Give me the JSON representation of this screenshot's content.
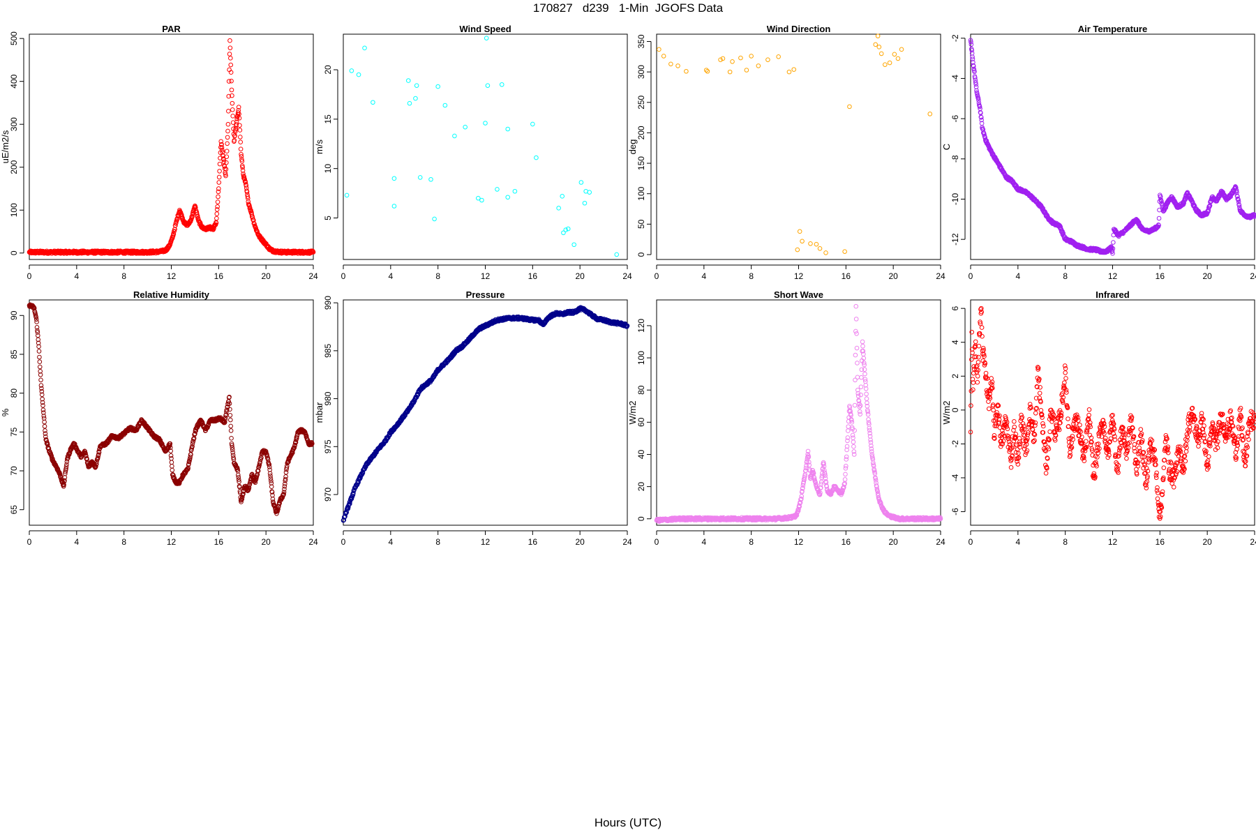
{
  "page": {
    "title": "170827   d239   1-Min  JGOFS Data",
    "x_label": "Hours (UTC)"
  },
  "chart_data": [
    {
      "type": "scatter",
      "title": "PAR",
      "ylabel": "uE/m2/s",
      "color": "#ff0000",
      "xlim": [
        0,
        24
      ],
      "xticks": [
        0,
        4,
        8,
        12,
        16,
        20,
        24
      ],
      "ylim": [
        -15,
        510
      ],
      "yticks": [
        0,
        100,
        200,
        300,
        400,
        500
      ],
      "x": [
        0,
        1,
        2,
        3,
        4,
        5,
        6,
        7,
        8,
        9,
        10,
        11,
        11.5,
        11.8,
        12.1,
        12.4,
        12.7,
        12.9,
        13.1,
        13.4,
        13.7,
        14,
        14.3,
        14.6,
        14.9,
        15.2,
        15.5,
        15.8,
        16,
        16.2,
        16.4,
        16.6,
        16.8,
        16.95,
        17.1,
        17.3,
        17.5,
        17.7,
        17.9,
        18.1,
        18.3,
        18.5,
        18.8,
        19.1,
        19.4,
        19.7,
        20,
        20.3,
        20.6,
        21,
        21.5,
        22,
        22.5,
        23,
        23.5,
        24
      ],
      "y": [
        2,
        2,
        2,
        2,
        2,
        2,
        2,
        2,
        2,
        2,
        2,
        3,
        6,
        15,
        35,
        70,
        100,
        85,
        70,
        65,
        80,
        110,
        75,
        60,
        55,
        60,
        55,
        70,
        150,
        260,
        220,
        180,
        300,
        495,
        380,
        260,
        300,
        340,
        230,
        180,
        160,
        120,
        90,
        60,
        40,
        30,
        20,
        10,
        5,
        3,
        2,
        2,
        2,
        2,
        2,
        2
      ]
    },
    {
      "type": "scatter",
      "title": "Wind Speed",
      "ylabel": "m/s",
      "color": "#00ffff",
      "xlim": [
        0,
        24
      ],
      "xticks": [
        0,
        4,
        8,
        12,
        16,
        20,
        24
      ],
      "ylim": [
        0.8,
        23.6
      ],
      "yticks": [
        5,
        10,
        15,
        20
      ],
      "x": [
        0.3,
        0.7,
        1.3,
        1.8,
        2.5,
        4.3,
        4.3,
        5.5,
        5.6,
        6.1,
        6.2,
        6.5,
        7.4,
        7.7,
        8,
        8.6,
        9.4,
        10.3,
        11.4,
        11.7,
        12,
        12.2,
        12.1,
        13,
        13.4,
        13.9,
        13.9,
        14.5,
        16,
        16.3,
        18.2,
        18.5,
        18.6,
        18.8,
        19,
        19.5,
        20.1,
        20.4,
        20.5,
        20.8,
        23.1
      ],
      "y": [
        7.3,
        19.9,
        19.5,
        22.2,
        16.7,
        9,
        6.2,
        18.9,
        16.6,
        17.1,
        18.4,
        9.1,
        8.9,
        4.9,
        18.3,
        16.4,
        13.3,
        14.2,
        7,
        6.8,
        14.6,
        18.4,
        23.2,
        7.9,
        18.5,
        14,
        7.1,
        7.7,
        14.5,
        11.1,
        6,
        7.2,
        3.5,
        3.8,
        3.9,
        2.3,
        8.6,
        6.5,
        7.7,
        7.6,
        1.3
      ]
    },
    {
      "type": "scatter",
      "title": "Wind Direction",
      "ylabel": "deg",
      "color": "#ffa500",
      "xlim": [
        0,
        24
      ],
      "xticks": [
        0,
        4,
        8,
        12,
        16,
        20,
        24
      ],
      "ylim": [
        -8,
        362
      ],
      "yticks": [
        0,
        50,
        100,
        150,
        200,
        250,
        300,
        350
      ],
      "x": [
        0.2,
        0.6,
        1.2,
        1.8,
        2.5,
        4.2,
        4.3,
        5.4,
        5.6,
        6.2,
        6.4,
        7.1,
        7.6,
        8,
        8.6,
        9.4,
        10.3,
        11.2,
        11.6,
        11.9,
        12.1,
        12.3,
        13,
        13.5,
        13.8,
        14.3,
        15.9,
        16.3,
        18.5,
        18.7,
        18.8,
        19,
        19.3,
        19.7,
        20.1,
        20.4,
        20.7,
        23.1
      ],
      "y": [
        337,
        326,
        313,
        310,
        301,
        303,
        301,
        320,
        322,
        300,
        317,
        323,
        303,
        326,
        310,
        320,
        325,
        300,
        304,
        8,
        38,
        22,
        18,
        17,
        10,
        3,
        5,
        243,
        345,
        359,
        341,
        330,
        312,
        315,
        329,
        322,
        337,
        231
      ]
    },
    {
      "type": "scatter",
      "title": "Air Temperature",
      "ylabel": "C",
      "color": "#a020f0",
      "xlim": [
        0,
        24
      ],
      "xticks": [
        0,
        4,
        8,
        12,
        16,
        20,
        24
      ],
      "ylim": [
        -13,
        -1.8
      ],
      "yticks": [
        -2,
        -4,
        -6,
        -8,
        -10,
        -12
      ],
      "x": [
        0,
        0.1,
        0.2,
        0.3,
        0.5,
        0.8,
        1,
        1.3,
        1.7,
        2,
        2.5,
        3,
        3.5,
        4,
        4.5,
        5,
        5.5,
        6,
        6.5,
        7,
        7.5,
        8,
        8.5,
        9,
        9.5,
        10,
        10.5,
        11,
        11.5,
        11.9,
        12,
        12.1,
        12.5,
        13,
        13.5,
        14,
        14.5,
        15,
        15.5,
        15.9,
        16,
        16.3,
        16.7,
        17,
        17.5,
        18,
        18.3,
        18.7,
        19,
        19.5,
        20,
        20.4,
        20.8,
        21.2,
        21.6,
        22,
        22.4,
        22.8,
        23.2,
        23.6,
        24
      ],
      "y": [
        -2.1,
        -2.6,
        -3.2,
        -3.6,
        -4.6,
        -5.5,
        -6.5,
        -7.1,
        -7.6,
        -7.9,
        -8.4,
        -8.9,
        -9.1,
        -9.5,
        -9.6,
        -9.8,
        -10.1,
        -10.4,
        -10.9,
        -11.2,
        -11.3,
        -12,
        -12.1,
        -12.3,
        -12.4,
        -12.5,
        -12.5,
        -12.6,
        -12.6,
        -12.4,
        -12.7,
        -11.5,
        -11.8,
        -11.6,
        -11.3,
        -11,
        -11.5,
        -11.6,
        -11.5,
        -11.3,
        -9.8,
        -10.6,
        -10.1,
        -9.9,
        -10.4,
        -10.2,
        -9.7,
        -10.1,
        -10.5,
        -10.8,
        -10.7,
        -9.9,
        -10.1,
        -9.6,
        -10,
        -9.8,
        -9.4,
        -10.6,
        -10.8,
        -10.9,
        -10.8
      ]
    },
    {
      "type": "scatter",
      "title": "Relative Humidity",
      "ylabel": "%",
      "color": "#8b0000",
      "xlim": [
        0,
        24
      ],
      "xticks": [
        0,
        4,
        8,
        12,
        16,
        20,
        24
      ],
      "ylim": [
        63,
        92
      ],
      "yticks": [
        65,
        70,
        75,
        80,
        85,
        90
      ],
      "x": [
        0,
        0.2,
        0.4,
        0.6,
        0.8,
        1,
        1.2,
        1.4,
        1.7,
        2,
        2.3,
        2.6,
        2.9,
        3.2,
        3.5,
        3.8,
        4.1,
        4.4,
        4.7,
        5,
        5.3,
        5.6,
        6,
        6.5,
        7,
        7.5,
        8,
        8.5,
        9,
        9.5,
        10,
        10.5,
        11,
        11.5,
        11.9,
        12.1,
        12.4,
        12.7,
        13,
        13.4,
        13.8,
        14.1,
        14.5,
        14.9,
        15.3,
        15.7,
        16.1,
        16.5,
        16.9,
        17.1,
        17.3,
        17.6,
        17.9,
        18.2,
        18.5,
        18.8,
        19.1,
        19.4,
        19.7,
        20,
        20.3,
        20.6,
        20.9,
        21.2,
        21.5,
        21.8,
        22.1,
        22.4,
        22.7,
        23,
        23.3,
        23.6,
        23.9
      ],
      "y": [
        91.3,
        91.2,
        91,
        89.5,
        86,
        81,
        77.5,
        74,
        72.5,
        71.3,
        70.5,
        69.5,
        68,
        71.5,
        72.8,
        73.5,
        72.5,
        71.8,
        72.5,
        70.5,
        71.2,
        70.5,
        73.2,
        73.5,
        74.5,
        74.2,
        74.8,
        75.5,
        75.2,
        76.5,
        75.5,
        74.5,
        74,
        72.5,
        73.5,
        69.5,
        68.5,
        68.5,
        69.5,
        70.2,
        73.5,
        75.5,
        76.5,
        75.2,
        76.5,
        76.5,
        76.8,
        76.2,
        79.5,
        73.5,
        71,
        70.2,
        66,
        68,
        67.5,
        69.5,
        68.5,
        70.5,
        72.5,
        72.5,
        70.5,
        66,
        64.5,
        66.2,
        67,
        71,
        72,
        73,
        75,
        75.2,
        75,
        73.5,
        73.5
      ]
    },
    {
      "type": "scatter",
      "title": "Pressure",
      "ylabel": "mbar",
      "color": "#00008b",
      "xlim": [
        0,
        24
      ],
      "xticks": [
        0,
        4,
        8,
        12,
        16,
        20,
        24
      ],
      "ylim": [
        966.8,
        990.3
      ],
      "yticks": [
        970,
        975,
        980,
        985,
        990
      ],
      "x": [
        0,
        0.2,
        0.5,
        1,
        1.5,
        2,
        2.5,
        3,
        3.5,
        4,
        4.5,
        5,
        5.5,
        6,
        6.5,
        7,
        7.5,
        8,
        8.5,
        9,
        9.5,
        10,
        10.5,
        11,
        11.5,
        12,
        12.5,
        13,
        13.5,
        14,
        14.5,
        15,
        15.5,
        16,
        16.5,
        16.9,
        17.2,
        17.5,
        18,
        18.5,
        19,
        19.5,
        20,
        20.5,
        21,
        21.5,
        22,
        22.5,
        23,
        23.5,
        24
      ],
      "y": [
        967.3,
        968,
        969,
        970.7,
        972,
        973.2,
        974,
        974.8,
        975.5,
        976.5,
        977.2,
        978,
        978.8,
        979.8,
        981,
        981.5,
        982,
        983,
        983.6,
        984.2,
        985,
        985.4,
        986,
        986.7,
        987.3,
        987.6,
        987.9,
        988.2,
        988.3,
        988.4,
        988.4,
        988.4,
        988.3,
        988.2,
        988.2,
        987.7,
        988.3,
        988.6,
        988.9,
        988.8,
        989,
        989,
        989.4,
        989.2,
        988.7,
        988.3,
        988.2,
        988,
        987.9,
        987.8,
        987.6
      ]
    },
    {
      "type": "scatter",
      "title": "Short Wave",
      "ylabel": "W/m2",
      "color": "#ee82ee",
      "xlim": [
        0,
        24
      ],
      "xticks": [
        0,
        4,
        8,
        12,
        16,
        20,
        24
      ],
      "ylim": [
        -4,
        136
      ],
      "yticks": [
        0,
        20,
        40,
        60,
        80,
        100,
        120
      ],
      "x": [
        0,
        1,
        2,
        3,
        4,
        5,
        6,
        7,
        8,
        9,
        10,
        11,
        11.5,
        11.8,
        12,
        12.2,
        12.4,
        12.6,
        12.8,
        13,
        13.2,
        13.5,
        13.8,
        14.1,
        14.4,
        14.7,
        15,
        15.3,
        15.6,
        15.9,
        16.1,
        16.3,
        16.5,
        16.7,
        16.85,
        17,
        17.2,
        17.4,
        17.6,
        17.8,
        18,
        18.2,
        18.4,
        18.6,
        18.8,
        19,
        19.3,
        19.6,
        20,
        20.5,
        21,
        21.5,
        22,
        22.5,
        23,
        23.5,
        24
      ],
      "y": [
        -1,
        -0.5,
        0,
        0,
        0,
        0,
        0,
        0,
        0,
        0,
        0,
        0.5,
        1,
        2,
        6,
        12,
        22,
        30,
        42,
        25,
        30,
        20,
        15,
        35,
        18,
        15,
        20,
        18,
        15,
        22,
        45,
        70,
        60,
        40,
        132,
        80,
        65,
        110,
        90,
        70,
        55,
        40,
        30,
        20,
        12,
        8,
        4,
        2,
        1,
        0,
        0,
        0,
        0,
        0,
        0,
        0,
        0
      ]
    },
    {
      "type": "scatter",
      "title": "Infrared",
      "ylabel": "W/m2",
      "color": "#ff0000",
      "xlim": [
        0,
        24
      ],
      "xticks": [
        0,
        4,
        8,
        12,
        16,
        20,
        24
      ],
      "ylim": [
        -6.8,
        6.5
      ],
      "yticks": [
        -6,
        -4,
        -2,
        0,
        2,
        4,
        6
      ],
      "x": [
        0,
        0.1,
        0.2,
        0.4,
        0.6,
        0.8,
        0.9,
        1,
        1.2,
        1.5,
        1.8,
        2,
        2.3,
        2.6,
        3,
        3.4,
        3.7,
        4,
        4.3,
        4.7,
        5,
        5.4,
        5.7,
        6,
        6.4,
        6.8,
        7.2,
        7.6,
        8,
        8.4,
        8.8,
        9.2,
        9.6,
        10,
        10.4,
        10.8,
        11.2,
        11.6,
        12,
        12.4,
        12.8,
        13.2,
        13.6,
        14,
        14.4,
        14.8,
        15.2,
        15.6,
        16,
        16.3,
        16.5,
        16.8,
        17.2,
        17.6,
        18,
        18.4,
        18.8,
        19.2,
        19.6,
        20,
        20.4,
        20.8,
        21.2,
        21.6,
        22,
        22.4,
        22.8,
        23.2,
        23.6,
        24
      ],
      "y": [
        -1.3,
        4.6,
        1.2,
        3.8,
        2,
        5.2,
        6,
        3.5,
        2.8,
        0.5,
        1.5,
        -1.5,
        0.3,
        -2,
        -0.6,
        -3,
        -1,
        -3.2,
        -0.5,
        -2.5,
        0.1,
        -1.8,
        2.4,
        -0.3,
        -3.4,
        0,
        -1.5,
        -0.3,
        2.2,
        -2.5,
        -0.5,
        -1.2,
        -3,
        -0.3,
        -4,
        -2,
        -0.6,
        -2.8,
        -0.3,
        -3.6,
        -1,
        -2.5,
        -0.5,
        -3.5,
        -1.5,
        -4.3,
        -2,
        -3,
        -6.4,
        -4,
        -1.5,
        -3.5,
        -4,
        -2.5,
        -3.4,
        -0.8,
        -0.3,
        -1.8,
        -0.5,
        -3.5,
        -1,
        -2,
        -0.3,
        -1.5,
        -0.5,
        -2.5,
        -0.3,
        -3.3,
        -0.5,
        -0.9
      ]
    }
  ]
}
